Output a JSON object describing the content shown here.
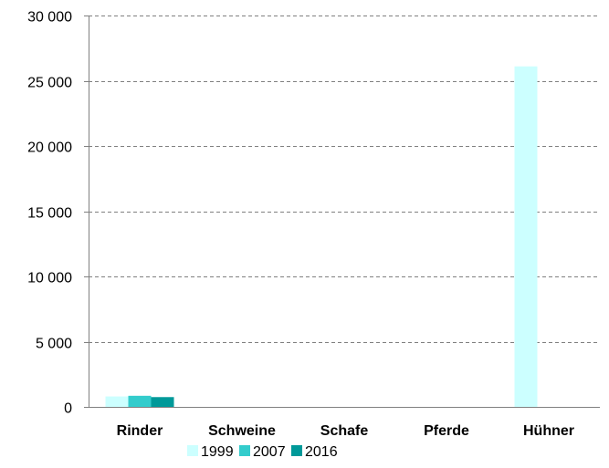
{
  "chart_data": {
    "type": "bar",
    "categories": [
      "Rinder",
      "Schweine",
      "Schafe",
      "Pferde",
      "Hühner"
    ],
    "series": [
      {
        "name": "1999",
        "values": [
          800,
          0,
          0,
          0,
          26100
        ],
        "color": "#ccffff"
      },
      {
        "name": "2007",
        "values": [
          850,
          0,
          0,
          0,
          0
        ],
        "color": "#33cccc"
      },
      {
        "name": "2016",
        "values": [
          750,
          0,
          0,
          0,
          0
        ],
        "color": "#009999"
      }
    ],
    "ylim": [
      0,
      30000
    ],
    "yticks": [
      0,
      5000,
      10000,
      15000,
      20000,
      25000,
      30000
    ],
    "ytick_labels": [
      "0",
      "5 000",
      "10 000",
      "15 000",
      "20 000",
      "25 000",
      "30 000"
    ],
    "title": "",
    "xlabel": "",
    "ylabel": "",
    "grid": true,
    "legend_position": "bottom",
    "colors": {
      "axis": "#808080",
      "grid": "#808080",
      "text": "#000000"
    }
  }
}
